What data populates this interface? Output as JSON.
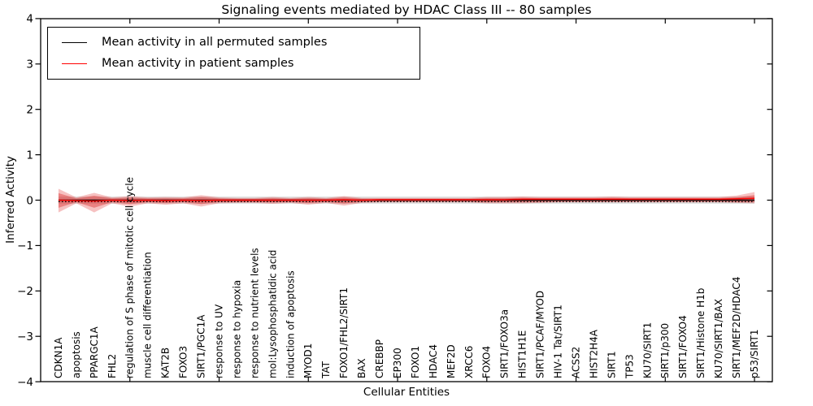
{
  "chart_data": {
    "type": "line",
    "title": "Signaling events mediated by HDAC Class III -- 80 samples",
    "xlabel": "Cellular Entities",
    "ylabel": "Inferred Activity",
    "ylim": [
      -4,
      4
    ],
    "yticks": [
      -4,
      -3,
      -2,
      -1,
      0,
      1,
      2,
      3,
      4
    ],
    "grid": false,
    "legend_position": "upper left",
    "legend": [
      {
        "label": "Mean activity in all permuted samples",
        "color": "#000000"
      },
      {
        "label": "Mean activity in patient samples",
        "color": "#ff0000"
      }
    ],
    "categories": [
      "CDKN1A",
      "apoptosis",
      "PPARGC1A",
      "FHL2",
      "regulation of S phase of mitotic cell cycle",
      "muscle cell differentiation",
      "KAT2B",
      "FOXO3",
      "SIRT1/PGC1A",
      "response to UV",
      "response to hypoxia",
      "response to nutrient levels",
      "mol:Lysophosphatidic acid",
      "induction of apoptosis",
      "MYOD1",
      "TAT",
      "FOXO1/FHL2/SIRT1",
      "BAX",
      "CREBBP",
      "EP300",
      "FOXO1",
      "HDAC4",
      "MEF2D",
      "XRCC6",
      "FOXO4",
      "SIRT1/FOXO3a",
      "HIST1H1E",
      "SIRT1/PCAF/MYOD",
      "HIV-1 Tat/SIRT1",
      "ACSS2",
      "HIST2H4A",
      "SIRT1",
      "TP53",
      "KU70/SIRT1",
      "SIRT1/p300",
      "SIRT1/FOXO4",
      "SIRT1/Histone H1b",
      "KU70/SIRT1/BAX",
      "SIRT1/MEF2D/HDAC4",
      "p53/SIRT1"
    ],
    "series": [
      {
        "name": "Mean activity in all permuted samples",
        "color": "#000000",
        "values": [
          0,
          0,
          0,
          0,
          0,
          0,
          0,
          0,
          0,
          0,
          0,
          0,
          0,
          0,
          0,
          0,
          0,
          0,
          0,
          0,
          0,
          0,
          0,
          0,
          0,
          0,
          0,
          0,
          0,
          0,
          0,
          0,
          0,
          0,
          0,
          0,
          0,
          0,
          0,
          0
        ]
      },
      {
        "name": "Mean activity in patient samples",
        "color": "#ff0000",
        "values": [
          0,
          -0.01,
          -0.02,
          0,
          -0.01,
          0,
          -0.01,
          0,
          -0.01,
          0,
          0,
          0,
          0,
          0,
          0,
          0,
          0.01,
          0,
          0.01,
          0.01,
          0.01,
          0.01,
          0.01,
          0.01,
          0.01,
          0.01,
          0.02,
          0.02,
          0.02,
          0.02,
          0.02,
          0.02,
          0.02,
          0.02,
          0.02,
          0.02,
          0.02,
          0.02,
          0.03,
          0.04
        ]
      }
    ],
    "patient_band": {
      "upper": [
        0.25,
        0.06,
        0.16,
        0.06,
        0.09,
        0.06,
        0.07,
        0.06,
        0.11,
        0.06,
        0.05,
        0.05,
        0.07,
        0.05,
        0.07,
        0.05,
        0.09,
        0.05,
        0.05,
        0.05,
        0.05,
        0.05,
        0.05,
        0.05,
        0.07,
        0.07,
        0.08,
        0.07,
        0.07,
        0.07,
        0.07,
        0.08,
        0.07,
        0.07,
        0.07,
        0.07,
        0.07,
        0.07,
        0.1,
        0.18
      ],
      "lower": [
        -0.27,
        -0.07,
        -0.27,
        -0.07,
        -0.14,
        -0.07,
        -0.1,
        -0.07,
        -0.14,
        -0.07,
        -0.06,
        -0.06,
        -0.08,
        -0.06,
        -0.1,
        -0.06,
        -0.12,
        -0.06,
        -0.05,
        -0.05,
        -0.05,
        -0.05,
        -0.05,
        -0.05,
        -0.07,
        -0.07,
        -0.07,
        -0.06,
        -0.05,
        -0.05,
        -0.05,
        -0.05,
        -0.05,
        -0.05,
        -0.05,
        -0.05,
        -0.05,
        -0.05,
        -0.06,
        -0.07
      ]
    },
    "permuted_band": {
      "upper": 0.08,
      "lower": -0.08
    },
    "colors": {
      "patient_line": "#ff0000",
      "permuted_line": "#000000",
      "patient_band_fill": "#dd2222",
      "permuted_band_fill": "#c9c9c9"
    }
  }
}
